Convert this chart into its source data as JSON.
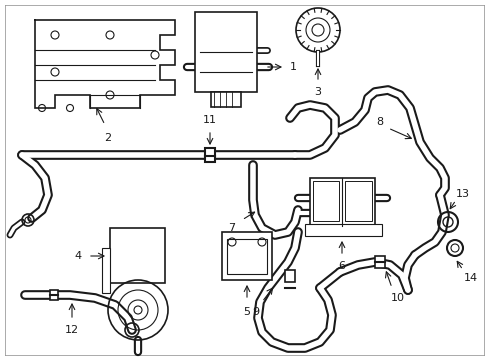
{
  "background_color": "#ffffff",
  "line_color": "#1a1a1a",
  "figsize": [
    4.89,
    3.6
  ],
  "dpi": 100,
  "border_color": "#cccccc"
}
